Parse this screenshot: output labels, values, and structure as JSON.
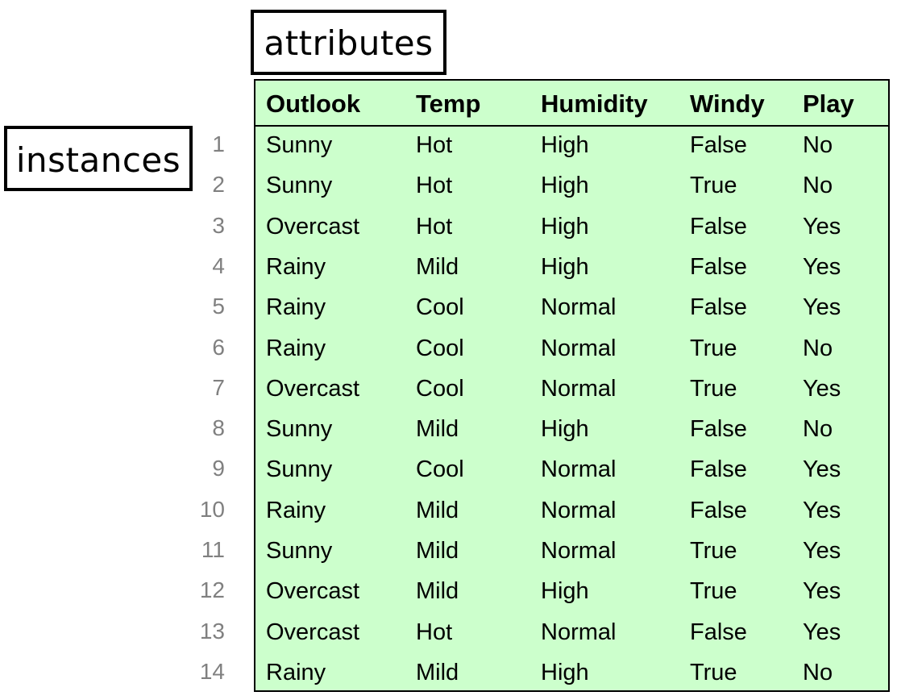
{
  "labels": {
    "attributes": "attributes",
    "instances": "instances"
  },
  "table": {
    "headers": [
      "Outlook",
      "Temp",
      "Humidity",
      "Windy",
      "Play"
    ],
    "rows": [
      {
        "num": "1",
        "outlook": "Sunny",
        "temp": "Hot",
        "humidity": "High",
        "windy": "False",
        "play": "No"
      },
      {
        "num": "2",
        "outlook": "Sunny",
        "temp": "Hot",
        "humidity": "High",
        "windy": "True",
        "play": "No"
      },
      {
        "num": "3",
        "outlook": "Overcast",
        "temp": "Hot",
        "humidity": "High",
        "windy": "False",
        "play": "Yes"
      },
      {
        "num": "4",
        "outlook": "Rainy",
        "temp": "Mild",
        "humidity": "High",
        "windy": "False",
        "play": "Yes"
      },
      {
        "num": "5",
        "outlook": "Rainy",
        "temp": "Cool",
        "humidity": "Normal",
        "windy": "False",
        "play": "Yes"
      },
      {
        "num": "6",
        "outlook": "Rainy",
        "temp": "Cool",
        "humidity": "Normal",
        "windy": "True",
        "play": "No"
      },
      {
        "num": "7",
        "outlook": "Overcast",
        "temp": "Cool",
        "humidity": "Normal",
        "windy": "True",
        "play": "Yes"
      },
      {
        "num": "8",
        "outlook": "Sunny",
        "temp": "Mild",
        "humidity": "High",
        "windy": "False",
        "play": "No"
      },
      {
        "num": "9",
        "outlook": "Sunny",
        "temp": "Cool",
        "humidity": "Normal",
        "windy": "False",
        "play": "Yes"
      },
      {
        "num": "10",
        "outlook": "Rainy",
        "temp": "Mild",
        "humidity": "Normal",
        "windy": "False",
        "play": "Yes"
      },
      {
        "num": "11",
        "outlook": "Sunny",
        "temp": "Mild",
        "humidity": "Normal",
        "windy": "True",
        "play": "Yes"
      },
      {
        "num": "12",
        "outlook": "Overcast",
        "temp": "Mild",
        "humidity": "High",
        "windy": "True",
        "play": "Yes"
      },
      {
        "num": "13",
        "outlook": "Overcast",
        "temp": "Hot",
        "humidity": "Normal",
        "windy": "False",
        "play": "Yes"
      },
      {
        "num": "14",
        "outlook": "Rainy",
        "temp": "Mild",
        "humidity": "High",
        "windy": "True",
        "play": "No"
      }
    ]
  },
  "colors": {
    "table_background": "#ccffcc",
    "border": "#000000",
    "row_number": "#808080"
  }
}
